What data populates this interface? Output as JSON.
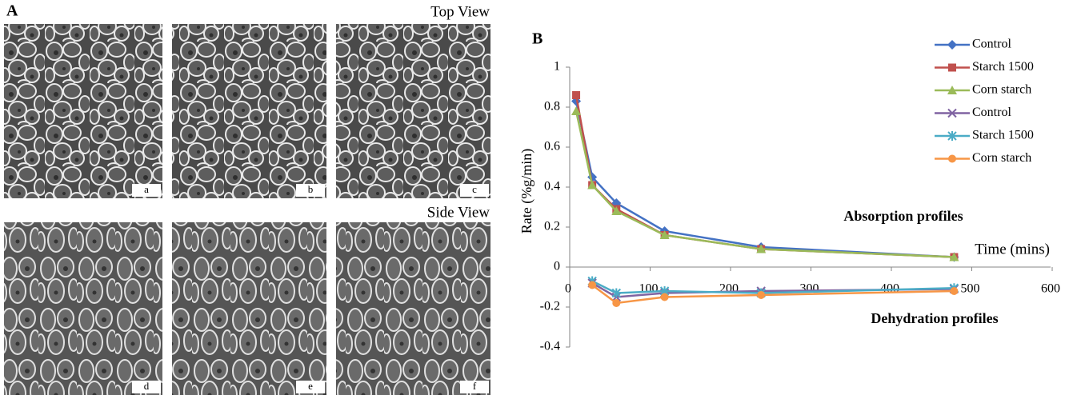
{
  "panel_a": {
    "label": "A",
    "top_view": "Top View",
    "side_view": "Side View",
    "images": [
      "a",
      "b",
      "c",
      "d",
      "e",
      "f"
    ]
  },
  "chart_data": {
    "type": "line",
    "label": "B",
    "x_label": "Time (mins)",
    "y_label": "Rate (%g/min)",
    "annotations": [
      "Absorption profiles",
      "Dehydration profiles"
    ],
    "x": [
      10,
      30,
      60,
      120,
      240,
      480
    ],
    "series": [
      {
        "name": "Control",
        "color": "#4472c4",
        "marker": "diamond",
        "values": [
          0.83,
          0.45,
          0.32,
          0.18,
          0.1,
          0.05
        ]
      },
      {
        "name": "Starch 1500",
        "color": "#c0504d",
        "marker": "square",
        "values": [
          0.86,
          0.41,
          0.29,
          0.16,
          0.09,
          0.05
        ]
      },
      {
        "name": "Corn starch",
        "color": "#9bbb59",
        "marker": "triangle",
        "values": [
          0.78,
          0.41,
          0.28,
          0.16,
          0.09,
          0.05
        ]
      },
      {
        "name": "Control",
        "color": "#8064a2",
        "marker": "x",
        "values": [
          null,
          -0.08,
          -0.15,
          -0.13,
          -0.12,
          -0.11
        ]
      },
      {
        "name": "Starch 1500",
        "color": "#4bacc6",
        "marker": "star",
        "values": [
          null,
          -0.07,
          -0.13,
          -0.12,
          -0.13,
          -0.105
        ]
      },
      {
        "name": "Corn starch",
        "color": "#f79646",
        "marker": "circle",
        "values": [
          null,
          -0.09,
          -0.18,
          -0.15,
          -0.14,
          -0.12
        ]
      }
    ],
    "xlim": [
      0,
      600
    ],
    "xticks": [
      0,
      100,
      200,
      300,
      400,
      500,
      600
    ],
    "ylim": [
      -0.4,
      1
    ],
    "yticks": [
      -0.4,
      -0.2,
      0,
      0.2,
      0.4,
      0.6,
      0.8,
      1
    ],
    "legend": "top-right"
  }
}
